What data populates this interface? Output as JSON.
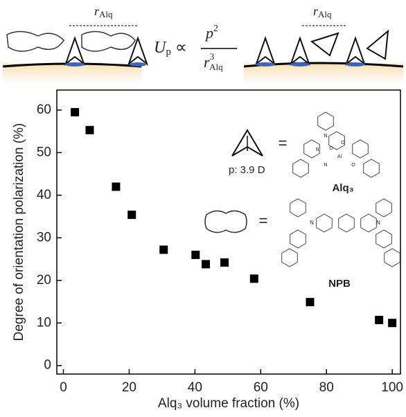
{
  "chart_data": {
    "type": "scatter",
    "x_label": "Alq₃ volume fraction (%)",
    "y_label": "Degree of orientation polarization (%)",
    "x": [
      3.5,
      8,
      16,
      20.8,
      30.5,
      40.2,
      43.3,
      49,
      58,
      75,
      96,
      100
    ],
    "values": [
      59.5,
      55.3,
      42,
      35.4,
      27.2,
      26,
      23.8,
      24.2,
      20.4,
      14.9,
      10.7,
      10
    ],
    "color": "#000000",
    "xlim": [
      -2,
      102.5
    ],
    "ylim": [
      -2,
      64.7
    ],
    "xticks": [
      0,
      20,
      40,
      60,
      80,
      100
    ],
    "yticks": [
      0,
      10,
      20,
      30,
      40,
      50,
      60
    ],
    "grid": false
  },
  "schematic": {
    "distance_label": "Alq",
    "distance_symbol": "r",
    "formula": {
      "U": "U",
      "sub": "p",
      "prop": "∝",
      "num": "p",
      "num_exp": "2",
      "den": "r",
      "den_exp": "3",
      "den_sub": "Alq"
    },
    "alq": {
      "dipole": "p: 3.9 D",
      "equals": "=",
      "name": "Alq₃",
      "atoms": [
        "N",
        "O",
        "Al",
        "O",
        "N",
        "N",
        "O"
      ]
    },
    "npb": {
      "equals": "=",
      "name": "NPB",
      "atoms": [
        "N",
        "N"
      ]
    }
  }
}
